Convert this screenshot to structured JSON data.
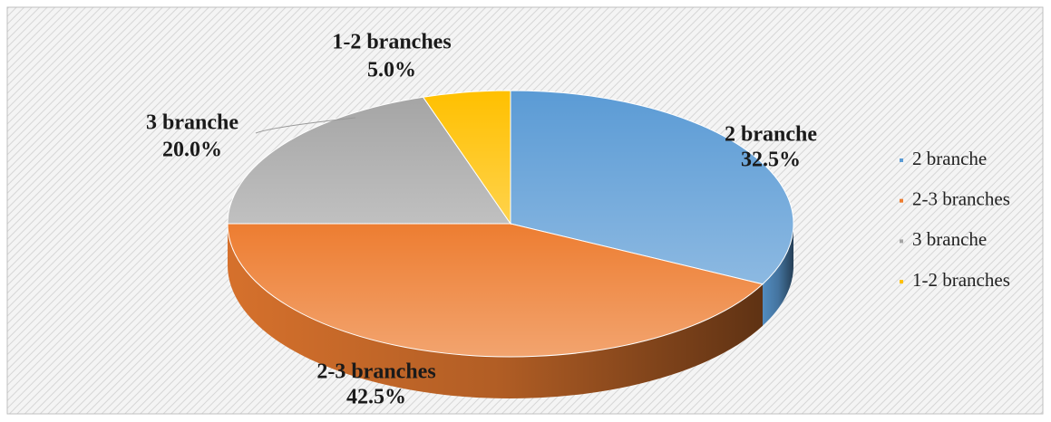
{
  "chart_data": {
    "type": "pie3d",
    "categories": [
      "2 branche",
      "2-3 branches",
      "3 branche",
      "1-2 branches"
    ],
    "values": [
      32.5,
      42.5,
      20.0,
      5.0
    ],
    "value_labels": [
      "32.5%",
      "42.5%",
      "20.0%",
      "5.0%"
    ],
    "colors": [
      "#5b9bd5",
      "#ed7d31",
      "#a5a5a5",
      "#ffc000"
    ],
    "legend": "right"
  }
}
